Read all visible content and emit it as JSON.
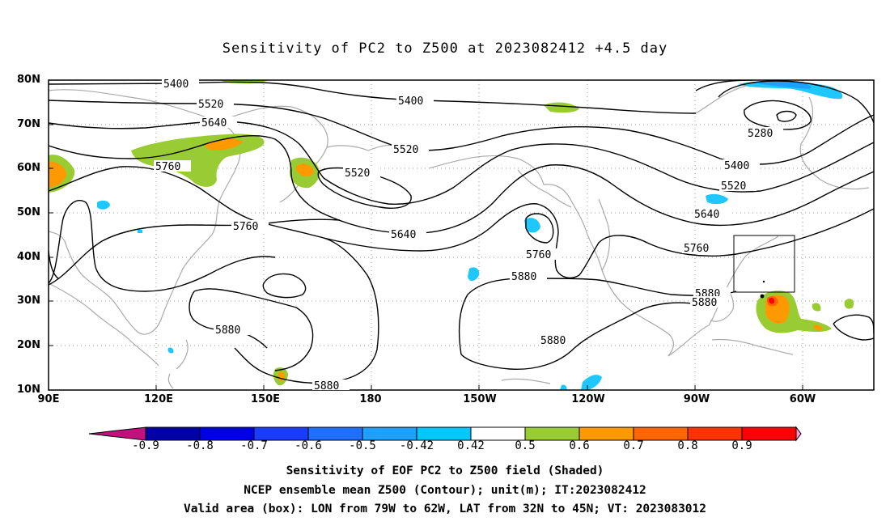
{
  "title": "Sensitivity of PC2 to Z500 at 2023082412 +4.5 day",
  "lat_labels": [
    "80N",
    "70N",
    "60N",
    "50N",
    "40N",
    "30N",
    "20N",
    "10N"
  ],
  "lon_labels": [
    "90E",
    "120E",
    "150E",
    "180",
    "150W",
    "120W",
    "90W",
    "60W"
  ],
  "contour_labels": [
    {
      "text": "5400"
    },
    {
      "text": "5520"
    },
    {
      "text": "5640"
    },
    {
      "text": "5760"
    },
    {
      "text": "5400"
    },
    {
      "text": "5520"
    },
    {
      "text": "5520"
    },
    {
      "text": "5280"
    },
    {
      "text": "5400"
    },
    {
      "text": "5520"
    },
    {
      "text": "5640"
    },
    {
      "text": "5760"
    },
    {
      "text": "5640"
    },
    {
      "text": "5760"
    },
    {
      "text": "5760"
    },
    {
      "text": "5880"
    },
    {
      "text": "5880"
    },
    {
      "text": "5880"
    },
    {
      "text": "5880"
    },
    {
      "text": "5880"
    },
    {
      "text": "5880"
    }
  ],
  "colorbar": {
    "labels": [
      "-0.9",
      "-0.8",
      "-0.7",
      "-0.6",
      "-0.5",
      "-0.42",
      "0.42",
      "0.5",
      "0.6",
      "0.7",
      "0.8",
      "0.9"
    ],
    "colors": [
      "#c0117f",
      "#0000a8",
      "#0000e6",
      "#1a3cff",
      "#1e6eff",
      "#1ea0ff",
      "#00c8ff",
      "#ffffff",
      "#99cc33",
      "#ff9900",
      "#ff6600",
      "#ff3300",
      "#ff0000",
      "#ff99cc"
    ]
  },
  "caption": {
    "line1": "Sensitivity of EOF PC2 to Z500 field (Shaded)",
    "line2": "NCEP ensemble mean Z500 (Contour); unit(m); IT:2023082412",
    "line3": "Valid area (box): LON from 79W to 62W, LAT from 32N to 45N; VT: 2023083012"
  }
}
